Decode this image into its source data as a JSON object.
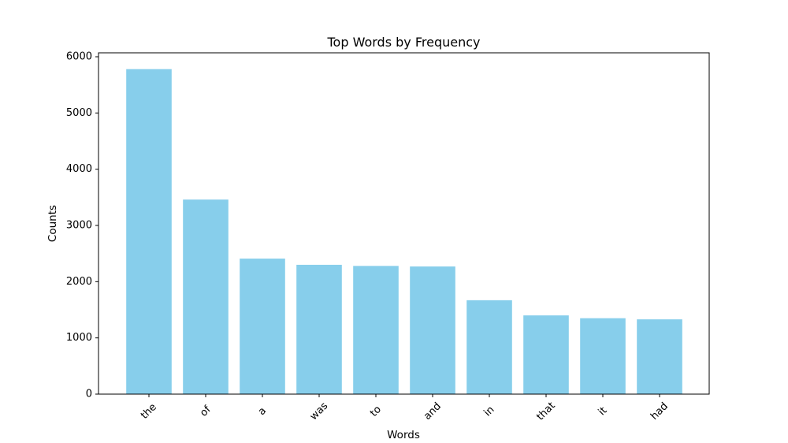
{
  "chart_data": {
    "type": "bar",
    "title": "Top Words by Frequency",
    "xlabel": "Words",
    "ylabel": "Counts",
    "categories": [
      "the",
      "of",
      "a",
      "was",
      "to",
      "and",
      "in",
      "that",
      "it",
      "had"
    ],
    "values": [
      5780,
      3460,
      2410,
      2300,
      2280,
      2270,
      1670,
      1400,
      1350,
      1330
    ],
    "ylim": [
      0,
      6070
    ],
    "yticks": [
      0,
      1000,
      2000,
      3000,
      4000,
      5000,
      6000
    ],
    "bar_color": "#87ceeb",
    "grid": false,
    "legend": "none"
  }
}
